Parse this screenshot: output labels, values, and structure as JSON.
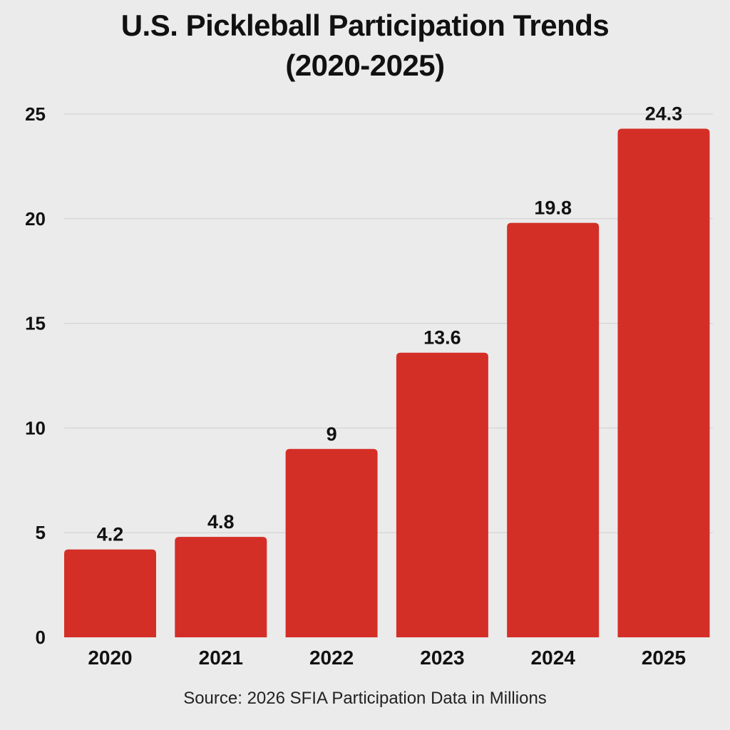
{
  "chart_data": {
    "type": "bar",
    "title_line1": "U.S. Pickleball Participation Trends",
    "title_line2": "(2020-2025)",
    "categories": [
      "2020",
      "2021",
      "2022",
      "2023",
      "2024",
      "2025"
    ],
    "values": [
      4.2,
      4.8,
      9,
      13.6,
      19.8,
      24.3
    ],
    "value_labels": [
      "4.2",
      "4.8",
      "9",
      "13.6",
      "19.8",
      "24.3"
    ],
    "yticks": [
      0,
      5,
      10,
      15,
      20,
      25
    ],
    "ylim": [
      0,
      25
    ],
    "grid": true,
    "legend": "none",
    "source": "Source: 2026 SFIA Participation Data in Millions",
    "colors": {
      "bar": "#d42f27",
      "grid": "#cfcfcf",
      "background": "#ebebeb",
      "text": "#111111"
    }
  }
}
